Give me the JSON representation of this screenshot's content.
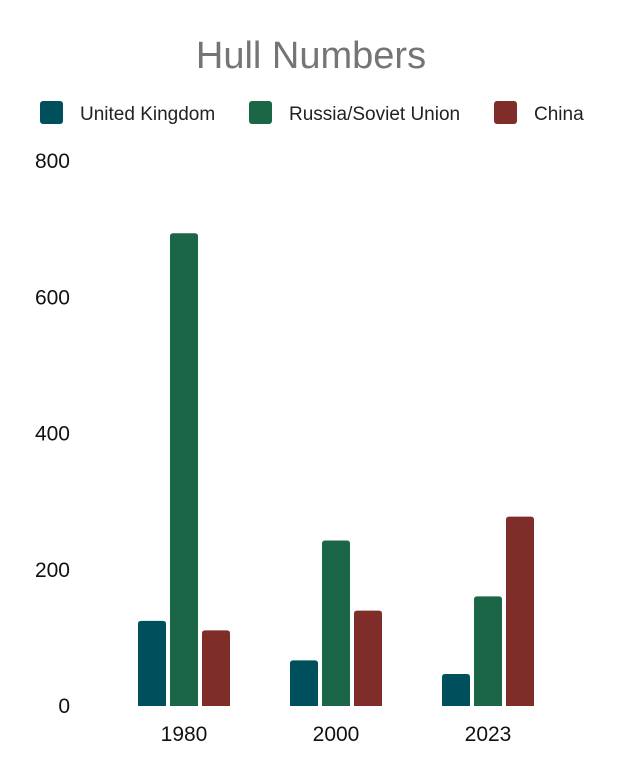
{
  "chart_data": {
    "type": "bar",
    "title": "Hull Numbers",
    "xlabel": "",
    "ylabel": "",
    "categories": [
      "1980",
      "2000",
      "2023"
    ],
    "series": [
      {
        "name": "United Kingdom",
        "color": "#004f5c",
        "values": [
          125,
          67,
          47
        ]
      },
      {
        "name": "Russia/Soviet Union",
        "color": "#1c6648",
        "values": [
          694,
          243,
          161
        ]
      },
      {
        "name": "China",
        "color": "#7e2d28",
        "values": [
          111,
          140,
          278
        ]
      }
    ],
    "ylim": [
      0,
      800
    ],
    "yticks": [
      "0",
      "200",
      "400",
      "600",
      "800"
    ],
    "grid": false,
    "legend_position": "top"
  }
}
